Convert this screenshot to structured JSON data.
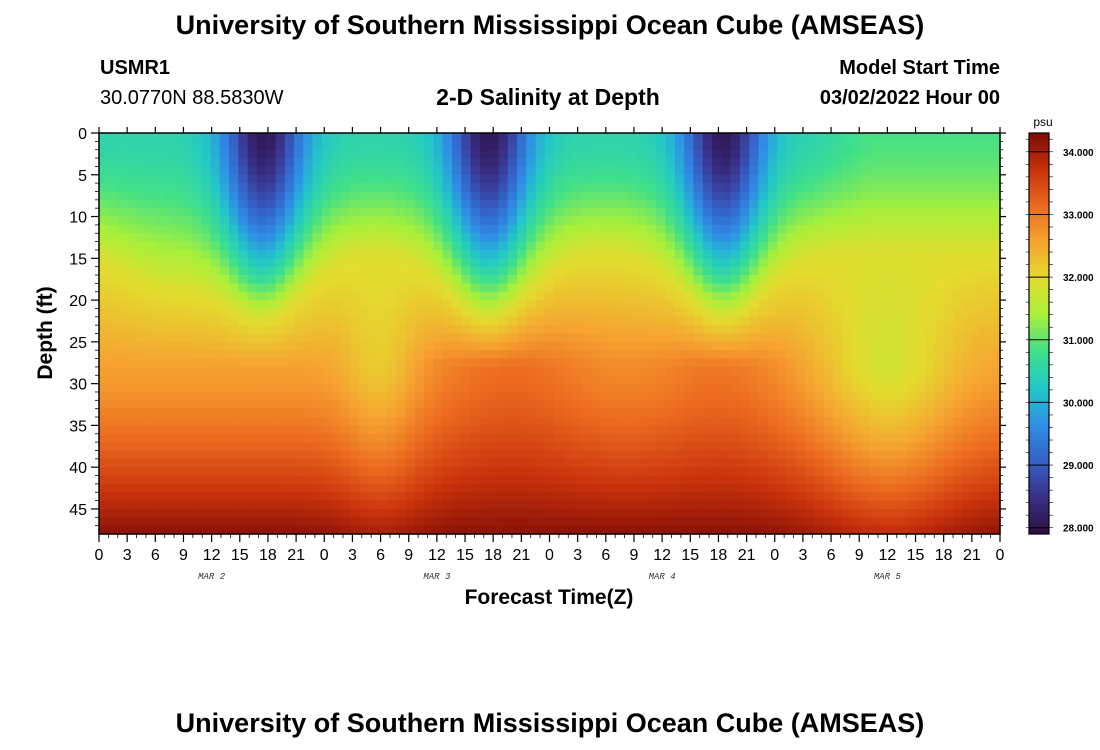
{
  "header": {
    "title": "University of Southern Mississippi Ocean Cube (AMSEAS)",
    "station_id": "USMR1",
    "coordinates": "30.0770N  88.5830W",
    "plot_title": "2-D Salinity at Depth",
    "model_start_label": "Model Start Time",
    "model_start_time": "03/02/2022 Hour 00"
  },
  "footer": {
    "title": "University of Southern Mississippi Ocean Cube (AMSEAS)"
  },
  "colors": {
    "colormap": [
      "#2a0e3f",
      "#3a2f86",
      "#3560c6",
      "#2f8fe6",
      "#22c8c8",
      "#3fe08a",
      "#a8f03a",
      "#e3dc2e",
      "#f6a531",
      "#ec6a1f",
      "#c8320c",
      "#7d0c06"
    ]
  },
  "chart_data": {
    "type": "heatmap",
    "title": "2-D Salinity at Depth",
    "xlabel": "Forecast Time(Z)",
    "ylabel": "Depth (ft)",
    "x_hours": [
      0,
      96
    ],
    "ylim": [
      0,
      48
    ],
    "x_tick_labels": [
      "0",
      "3",
      "6",
      "9",
      "12",
      "15",
      "18",
      "21",
      "0",
      "3",
      "6",
      "9",
      "12",
      "15",
      "18",
      "21",
      "0",
      "3",
      "6",
      "9",
      "12",
      "15",
      "18",
      "21",
      "0",
      "3",
      "6",
      "9",
      "12",
      "15",
      "18",
      "21",
      "0"
    ],
    "y_ticks": [
      0,
      5,
      10,
      15,
      20,
      25,
      30,
      35,
      40,
      45
    ],
    "day_labels": [
      {
        "label": "MAR 2",
        "hour": 12
      },
      {
        "label": "MAR 3",
        "hour": 36
      },
      {
        "label": "MAR 4",
        "hour": 60
      },
      {
        "label": "MAR 5",
        "hour": 84
      }
    ],
    "colorbar": {
      "unit": "psu",
      "min": 27.9,
      "max": 34.3,
      "ticks": [
        "34.000",
        "33.000",
        "32.000",
        "31.000",
        "30.000",
        "29.000",
        "28.000"
      ]
    },
    "fresh_lens_centers_hour": [
      17.5,
      41.5,
      66.5
    ],
    "fresh_lens_core_psu": 28.1,
    "bottom_salinity_psu_max": 34.2,
    "surface_background_psu": 30.5
  }
}
